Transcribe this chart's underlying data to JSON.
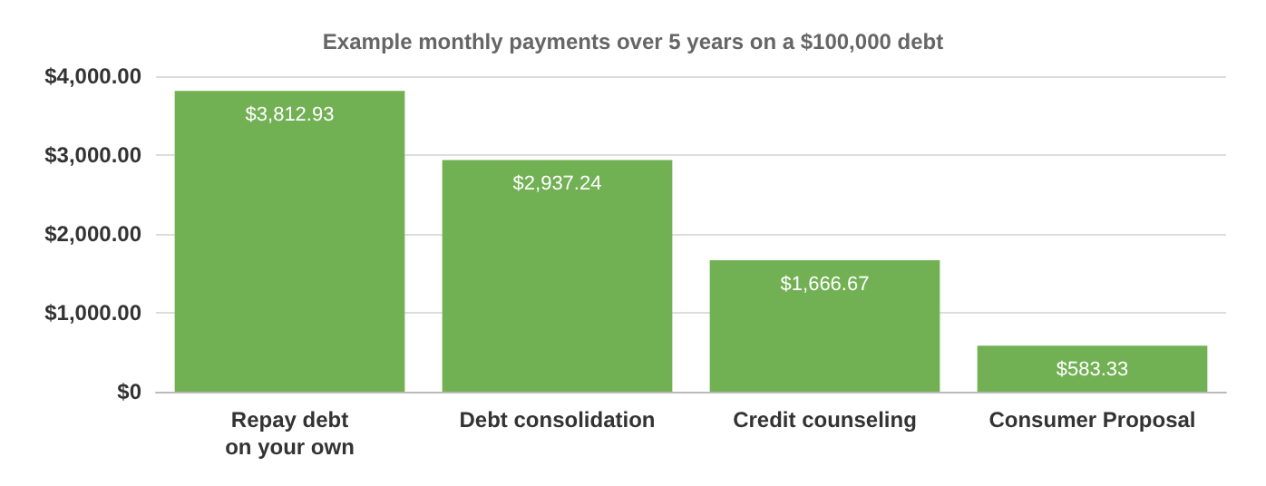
{
  "chart_data": {
    "type": "bar",
    "title": "Example monthly payments over 5 years on a $100,000 debt",
    "categories": [
      "Repay debt\non your own",
      "Debt consolidation",
      "Credit counseling",
      "Consumer Proposal"
    ],
    "values": [
      3812.93,
      2937.24,
      1666.67,
      583.33
    ],
    "value_labels": [
      "$3,812.93",
      "$2,937.24",
      "$1,666.67",
      "$583.33"
    ],
    "color": "#72b054",
    "ylim": [
      0,
      4000
    ],
    "yticks": [
      {
        "value": 0,
        "label": "$0"
      },
      {
        "value": 1000,
        "label": "$1,000.00"
      },
      {
        "value": 2000,
        "label": "$2,000.00"
      },
      {
        "value": 3000,
        "label": "$3,000.00"
      },
      {
        "value": 4000,
        "label": "$4,000.00"
      }
    ],
    "grid": true
  }
}
